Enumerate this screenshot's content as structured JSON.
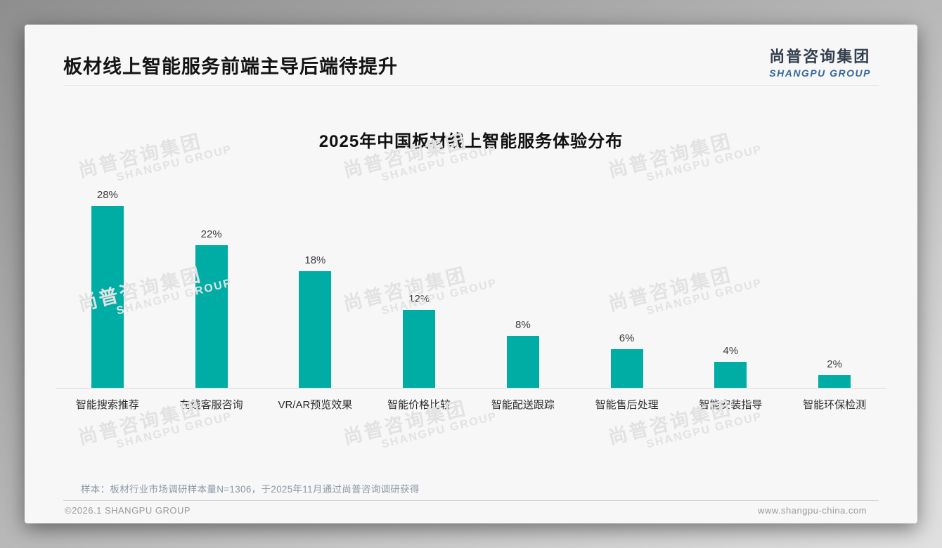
{
  "page": {
    "header": {
      "title": "板材线上智能服务前端主导后端待提升"
    },
    "logo": {
      "cn": "尚普咨询集团",
      "en": "SHANGPU GROUP"
    },
    "watermark": {
      "cn": "尚普咨询集团",
      "en": "SHANGPU GROUP"
    },
    "note": "样本：板材行业市场调研样本量N=1306，于2025年11月通过尚普咨询调研获得",
    "footer": {
      "left": "©2026.1 SHANGPU GROUP",
      "right": "www.shangpu-china.com"
    },
    "colors": {
      "bar": "#00ADA4",
      "logo_cn": "#333F4E",
      "logo_en": "#36689C",
      "note": "#8B98A8",
      "card_bg": "#F7F7F7"
    }
  },
  "chart_data": {
    "type": "bar",
    "title": "2025年中国板材线上智能服务体验分布",
    "categories": [
      "智能搜索推荐",
      "在线客服咨询",
      "VR/AR预览效果",
      "智能价格比较",
      "智能配送跟踪",
      "智能售后处理",
      "智能安装指导",
      "智能环保检测"
    ],
    "values": [
      28,
      22,
      18,
      12,
      8,
      6,
      4,
      2
    ],
    "unit": "%",
    "xlabel": "",
    "ylabel": "",
    "ylim": [
      0,
      30
    ],
    "grid": false,
    "legend": false,
    "data_labels": true,
    "bar_color": "#00ADA4"
  }
}
